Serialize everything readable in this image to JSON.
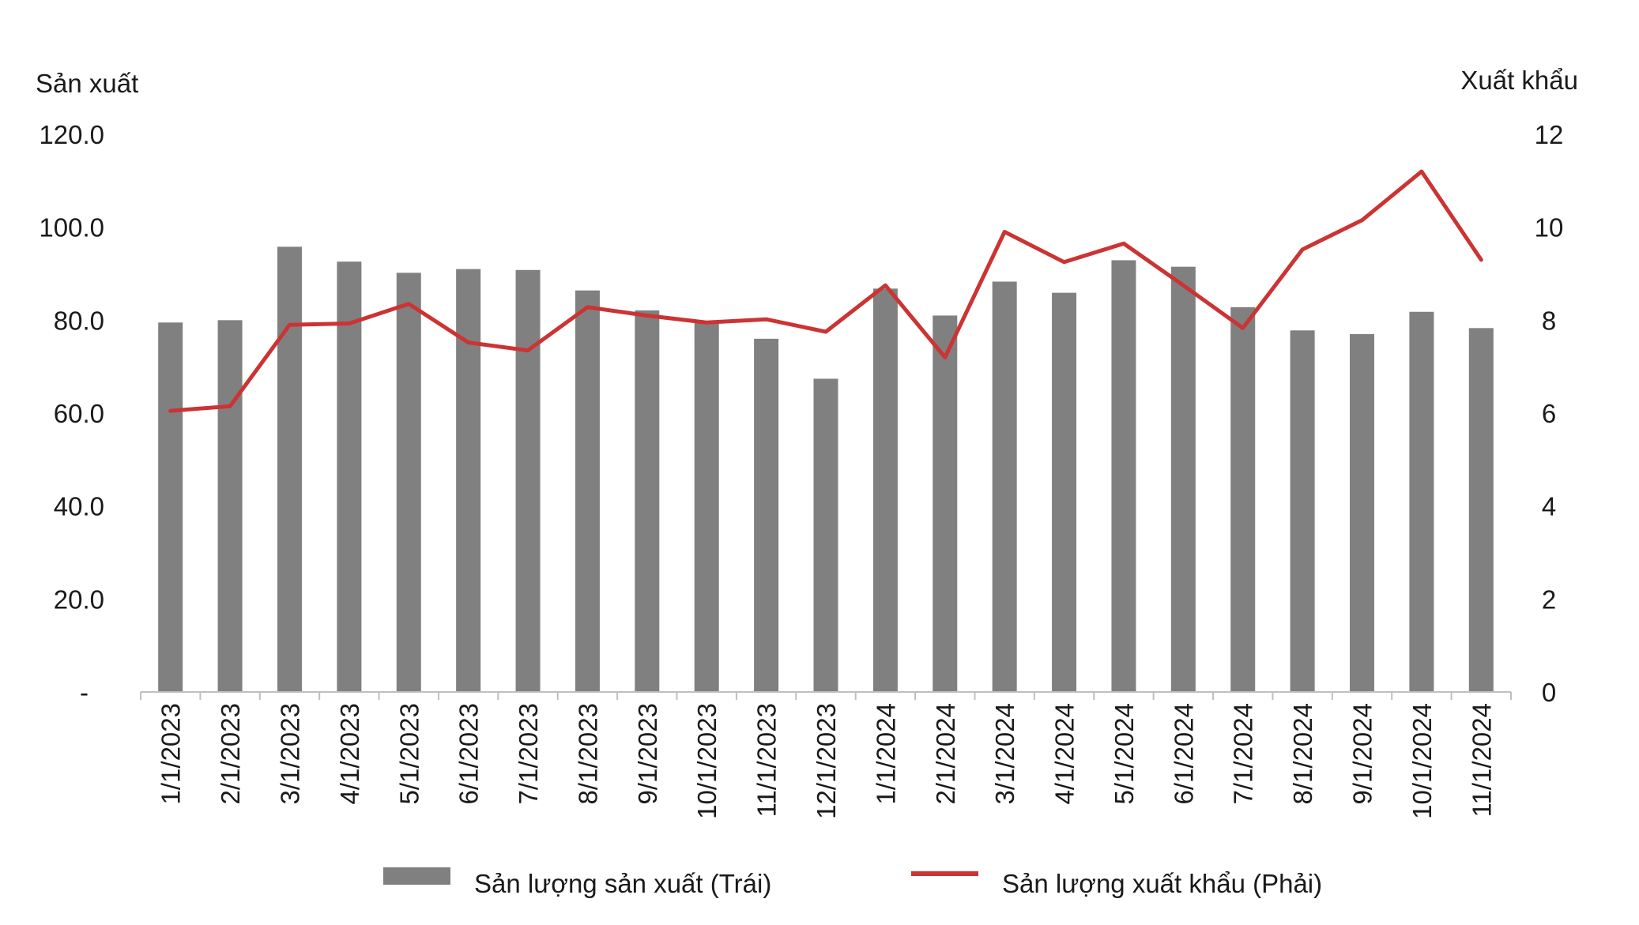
{
  "chart_data": {
    "type": "bar+line",
    "title": "",
    "categories": [
      "1/1/2023",
      "2/1/2023",
      "3/1/2023",
      "4/1/2023",
      "5/1/2023",
      "6/1/2023",
      "7/1/2023",
      "8/1/2023",
      "9/1/2023",
      "10/1/2023",
      "11/1/2023",
      "12/1/2023",
      "1/1/2024",
      "2/1/2024",
      "3/1/2024",
      "4/1/2024",
      "5/1/2024",
      "6/1/2024",
      "7/1/2024",
      "8/1/2024",
      "9/1/2024",
      "10/1/2024",
      "11/1/2024"
    ],
    "left_axis": {
      "label": "Sản xuất",
      "ylim": [
        0,
        120
      ],
      "ticks": [
        "-",
        "20.0",
        "40.0",
        "60.0",
        "80.0",
        "100.0",
        "120.0"
      ]
    },
    "right_axis": {
      "label": "Xuất khẩu",
      "ylim": [
        0,
        12
      ],
      "ticks": [
        "0",
        "2",
        "4",
        "6",
        "8",
        "10",
        "12"
      ]
    },
    "series": [
      {
        "name": "Sản lượng sản xuất (Trái)",
        "type": "bar",
        "axis": "left",
        "color": "#808080",
        "values": [
          79.5,
          80.0,
          95.8,
          92.6,
          90.2,
          91.0,
          90.8,
          86.4,
          82.1,
          79.8,
          76.0,
          67.4,
          86.8,
          81.0,
          88.3,
          85.9,
          92.9,
          91.5,
          82.8,
          77.8,
          77.0,
          81.8,
          78.3
        ]
      },
      {
        "name": "Sản lượng xuất khẩu (Phải)",
        "type": "line",
        "axis": "right",
        "color": "#cc3333",
        "values": [
          6.05,
          6.15,
          7.9,
          7.93,
          8.35,
          7.52,
          7.35,
          8.28,
          8.1,
          7.95,
          8.02,
          7.75,
          8.75,
          7.2,
          9.9,
          9.25,
          9.65,
          8.75,
          7.83,
          9.52,
          10.15,
          11.2,
          9.3
        ]
      }
    ],
    "legend_position": "bottom",
    "grid": false
  }
}
